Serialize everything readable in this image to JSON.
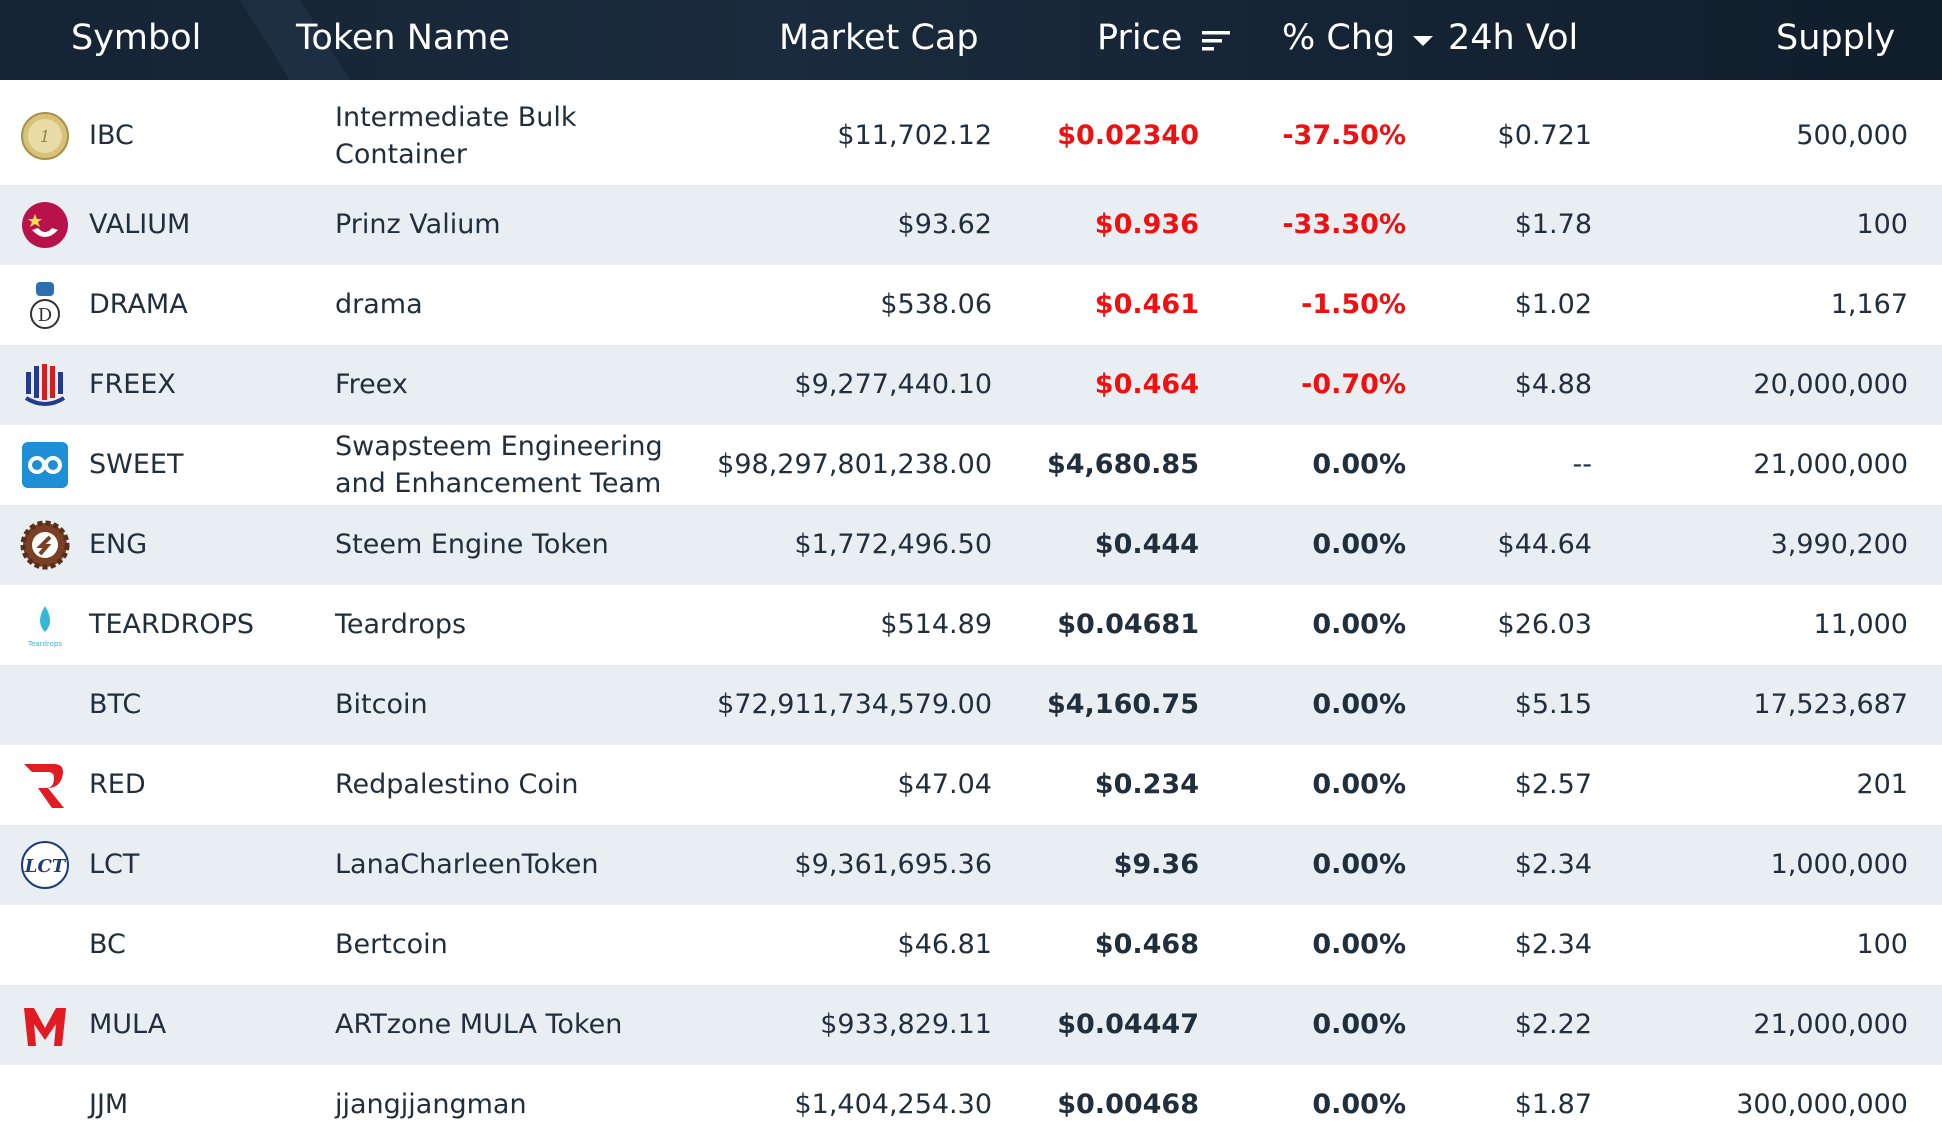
{
  "header": {
    "symbol": "Symbol",
    "token_name": "Token Name",
    "market_cap": "Market Cap",
    "price": "Price",
    "pct_change": "% Chg",
    "volume": "24h Vol",
    "supply": "Supply"
  },
  "colors": {
    "header_bg": "#152434",
    "negative": "#ee1111",
    "row_alt": "#e9eef3",
    "text": "#212e3c"
  },
  "rows": [
    {
      "icon": "ibc-coin-icon",
      "symbol": "IBC",
      "name_line1": "Intermediate Bulk",
      "name_line2": "Container",
      "market_cap": "$11,702.12",
      "price": "$0.02340",
      "change": "-37.50%",
      "volume": "$0.721",
      "supply": "500,000",
      "trend": "negative"
    },
    {
      "icon": "valium-icon",
      "symbol": "VALIUM",
      "name_line1": "Prinz Valium",
      "name_line2": "",
      "market_cap": "$93.62",
      "price": "$0.936",
      "change": "-33.30%",
      "volume": "$1.78",
      "supply": "100",
      "trend": "negative"
    },
    {
      "icon": "drama-icon",
      "symbol": "DRAMA",
      "name_line1": "drama",
      "name_line2": "",
      "market_cap": "$538.06",
      "price": "$0.461",
      "change": "-1.50%",
      "volume": "$1.02",
      "supply": "1,167",
      "trend": "negative"
    },
    {
      "icon": "freex-icon",
      "symbol": "FREEX",
      "name_line1": "Freex",
      "name_line2": "",
      "market_cap": "$9,277,440.10",
      "price": "$0.464",
      "change": "-0.70%",
      "volume": "$4.88",
      "supply": "20,000,000",
      "trend": "negative"
    },
    {
      "icon": "sweet-icon",
      "symbol": "SWEET",
      "name_line1": "Swapsteem Engineering",
      "name_line2": "and Enhancement Team",
      "market_cap": "$98,297,801,238.00",
      "price": "$4,680.85",
      "change": "0.00%",
      "volume": "--",
      "supply": "21,000,000",
      "trend": "neutral"
    },
    {
      "icon": "eng-gear-icon",
      "symbol": "ENG",
      "name_line1": "Steem Engine Token",
      "name_line2": "",
      "market_cap": "$1,772,496.50",
      "price": "$0.444",
      "change": "0.00%",
      "volume": "$44.64",
      "supply": "3,990,200",
      "trend": "neutral"
    },
    {
      "icon": "teardrop-icon",
      "symbol": "TEARDROPS",
      "name_line1": "Teardrops",
      "name_line2": "",
      "market_cap": "$514.89",
      "price": "$0.04681",
      "change": "0.00%",
      "volume": "$26.03",
      "supply": "11,000",
      "trend": "neutral"
    },
    {
      "icon": "",
      "symbol": "BTC",
      "name_line1": "Bitcoin",
      "name_line2": "",
      "market_cap": "$72,911,734,579.00",
      "price": "$4,160.75",
      "change": "0.00%",
      "volume": "$5.15",
      "supply": "17,523,687",
      "trend": "neutral"
    },
    {
      "icon": "red-r-icon",
      "symbol": "RED",
      "name_line1": "Redpalestino Coin",
      "name_line2": "",
      "market_cap": "$47.04",
      "price": "$0.234",
      "change": "0.00%",
      "volume": "$2.57",
      "supply": "201",
      "trend": "neutral"
    },
    {
      "icon": "lct-icon",
      "symbol": "LCT",
      "name_line1": "LanaCharleenToken",
      "name_line2": "",
      "market_cap": "$9,361,695.36",
      "price": "$9.36",
      "change": "0.00%",
      "volume": "$2.34",
      "supply": "1,000,000",
      "trend": "neutral"
    },
    {
      "icon": "",
      "symbol": "BC",
      "name_line1": "Bertcoin",
      "name_line2": "",
      "market_cap": "$46.81",
      "price": "$0.468",
      "change": "0.00%",
      "volume": "$2.34",
      "supply": "100",
      "trend": "neutral"
    },
    {
      "icon": "mula-icon",
      "symbol": "MULA",
      "name_line1": "ARTzone MULA Token",
      "name_line2": "",
      "market_cap": "$933,829.11",
      "price": "$0.04447",
      "change": "0.00%",
      "volume": "$2.22",
      "supply": "21,000,000",
      "trend": "neutral"
    },
    {
      "icon": "",
      "symbol": "JJM",
      "name_line1": "jjangjjangman",
      "name_line2": "",
      "market_cap": "$1,404,254.30",
      "price": "$0.00468",
      "change": "0.00%",
      "volume": "$1.87",
      "supply": "300,000,000",
      "trend": "neutral"
    }
  ]
}
